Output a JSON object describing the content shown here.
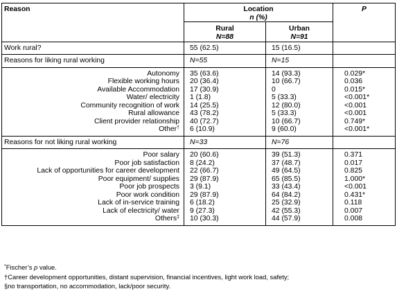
{
  "header": {
    "reason": "Reason",
    "location": "Location",
    "n_pct": "n (%)",
    "p": "P",
    "rural": "Rural",
    "rural_n": "N=88",
    "urban": "Urban",
    "urban_n": "N=91"
  },
  "work_rural": {
    "label": "Work rural?",
    "rural": "55 (62.5)",
    "urban": "15 (16.5)"
  },
  "liking": {
    "heading": "Reasons for liking rural working",
    "rural_n": "N=55",
    "urban_n": "N=15",
    "rows": [
      {
        "reason": "Autonomy",
        "sup": "",
        "rural": "35 (63.6)",
        "urban": "14 (93.3)",
        "p": "0.029*"
      },
      {
        "reason": "Flexible working hours",
        "sup": "",
        "rural": "20 (36.4)",
        "urban": "10 (66.7)",
        "p": "0.036"
      },
      {
        "reason": "Available Accommodation",
        "sup": "",
        "rural": "17 (30.9)",
        "urban": "0",
        "p": "0.015*"
      },
      {
        "reason": "Water/ electricity",
        "sup": "",
        "rural": "1 (1.8)",
        "urban": "5 (33.3)",
        "p": "<0.001*"
      },
      {
        "reason": "Community recognition of work",
        "sup": "",
        "rural": "14 (25.5)",
        "urban": "12 (80.0)",
        "p": "<0.001"
      },
      {
        "reason": "Rural allowance",
        "sup": "",
        "rural": "43 (78.2)",
        "urban": "5 (33.3)",
        "p": "<0.001"
      },
      {
        "reason": "Client provider relationship",
        "sup": "",
        "rural": "40 (72.7)",
        "urban": "10 (66.7)",
        "p": "0.749*"
      },
      {
        "reason": "Other",
        "sup": "†",
        "rural": "6 (10.9)",
        "urban": "9 (60.0)",
        "p": "<0.001*"
      }
    ]
  },
  "not_liking": {
    "heading": "Reasons for not liking rural working",
    "rural_n": "N=33",
    "urban_n": "N=76",
    "rows": [
      {
        "reason": "Poor salary",
        "sup": "",
        "rural": "20 (60.6)",
        "urban": "39 (51.3)",
        "p": "0.371"
      },
      {
        "reason": "Poor job satisfaction",
        "sup": "",
        "rural": "8 (24.2)",
        "urban": "37 (48.7)",
        "p": "0.017"
      },
      {
        "reason": "Lack of opportunities for career development",
        "sup": "",
        "rural": "22 (66.7)",
        "urban": "49 (64.5)",
        "p": "0.825"
      },
      {
        "reason": "Poor equipment/ supplies",
        "sup": "",
        "rural": "29 (87.9)",
        "urban": "65 (85.5)",
        "p": "1.000*"
      },
      {
        "reason": "Poor job prospects",
        "sup": "",
        "rural": "3 (9.1)",
        "urban": "33 (43.4)",
        "p": "<0.001"
      },
      {
        "reason": "Poor work condition",
        "sup": "",
        "rural": "29 (87.9)",
        "urban": "64 (84.2)",
        "p": "0.431*"
      },
      {
        "reason": "Lack of in-service training",
        "sup": "",
        "rural": "6 (18.2)",
        "urban": "25 (32.9)",
        "p": "0.118"
      },
      {
        "reason": "Lack of electricity/ water",
        "sup": "",
        "rural": "9 (27.3)",
        "urban": "42 (55.3)",
        "p": "0.007"
      },
      {
        "reason": "Others",
        "sup": "‡",
        "rural": "10 (30.3)",
        "urban": "44 (57.9)",
        "p": "0.008"
      }
    ]
  },
  "footnotes": {
    "star_mark": "*",
    "star_text": "Fischer’s ",
    "star_p": "p",
    "star_tail": " value.",
    "dagger": "†Career development opportunities, distant supervision, financial incentives, light work load, safety;",
    "ddagger": "§no transportation, no accommodation, lack/poor security."
  }
}
